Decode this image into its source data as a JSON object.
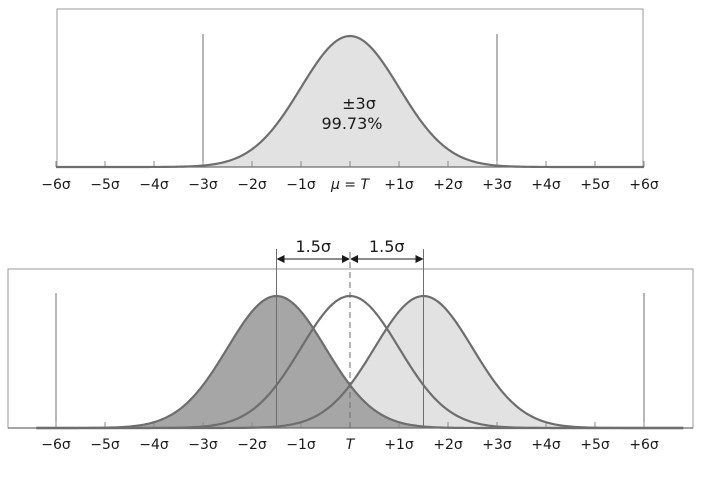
{
  "chart_data": [
    {
      "type": "area",
      "title": "",
      "xlabel": "",
      "ylabel": "",
      "x_tick_labels": [
        "−6σ",
        "−5σ",
        "−4σ",
        "−3σ",
        "−2σ",
        "−1σ",
        "μ = T",
        "+1σ",
        "+2σ",
        "+3σ",
        "+4σ",
        "+5σ",
        "+6σ"
      ],
      "x_ticks": [
        -6,
        -5,
        -4,
        -3,
        -2,
        -1,
        0,
        1,
        2,
        3,
        4,
        5,
        6
      ],
      "xlim": [
        -6,
        6
      ],
      "spec_limits": [
        -3,
        3
      ],
      "series": [
        {
          "distribution": "normal",
          "mean": 0,
          "sd": 1,
          "fill": "#e2e2e2"
        }
      ],
      "annotations": {
        "range_label": "±3σ",
        "percent_label": "99.73%"
      }
    },
    {
      "type": "area",
      "title": "",
      "xlabel": "",
      "ylabel": "",
      "x_tick_labels": [
        "−6σ",
        "−5σ",
        "−4σ",
        "−3σ",
        "−2σ",
        "−1σ",
        "T",
        "+1σ",
        "+2σ",
        "+3σ",
        "+4σ",
        "+5σ",
        "+6σ"
      ],
      "x_ticks": [
        -6,
        -5,
        -4,
        -3,
        -2,
        -1,
        0,
        1,
        2,
        3,
        4,
        5,
        6
      ],
      "xlim": [
        -6,
        6
      ],
      "spec_limits": [
        -6,
        6
      ],
      "series": [
        {
          "distribution": "normal",
          "mean": -1.5,
          "sd": 1,
          "fill": "#a6a6a6"
        },
        {
          "distribution": "normal",
          "mean": 0,
          "sd": 1,
          "fill": "none"
        },
        {
          "distribution": "normal",
          "mean": 1.5,
          "sd": 1,
          "fill": "#e2e2e2"
        }
      ],
      "shift": {
        "left_label": "1.5σ",
        "right_label": "1.5σ",
        "amount": 1.5
      }
    }
  ],
  "colors": {
    "curve": "#6e6e6e",
    "frame": "#9a9a9a",
    "light_fill": "#e2e2e2",
    "dark_fill": "#a6a6a6"
  }
}
